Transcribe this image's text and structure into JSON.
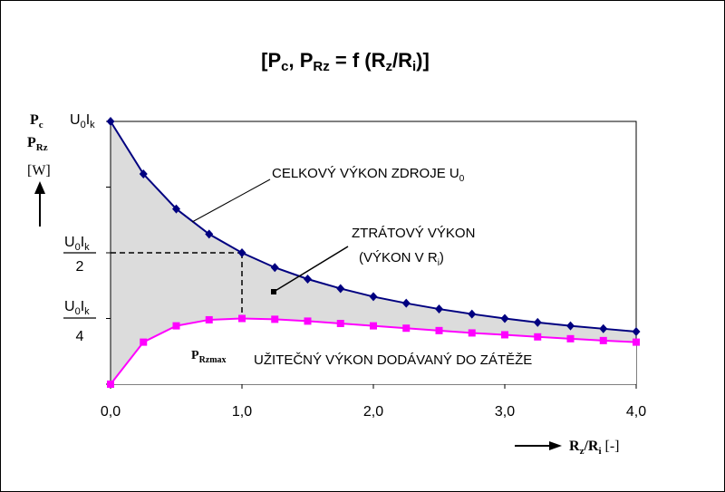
{
  "chart_data": {
    "type": "line",
    "title": {
      "base": "[P",
      "sub1": "c",
      "mid": ", P",
      "sub2": "Rz",
      "rest": " = f (R",
      "sub3": "z",
      "slash": "/R",
      "sub4": "i",
      "end": ")]"
    },
    "xlabel": {
      "main": "R",
      "sub1": "z",
      "slash": "/R",
      "sub2": "i",
      "unit": " [-]"
    },
    "ylabel": {
      "line1_main": "P",
      "line1_sub": "c",
      "line2_main": "P",
      "line2_sub": "Rz",
      "line3": "[W]"
    },
    "xlim": [
      0,
      4
    ],
    "ylim": [
      0,
      1
    ],
    "x_tick_labels": [
      "0,0",
      "1,0",
      "2,0",
      "3,0",
      "4,0"
    ],
    "x_tick_values": [
      0,
      1,
      2,
      3,
      4
    ],
    "y_tick_labels": {
      "top": {
        "u": "U",
        "u_sub": "0",
        "i": "I",
        "i_sub": "k"
      },
      "half": {
        "u": "U",
        "u_sub": "0",
        "i": "I",
        "i_sub": "k",
        "den": "2"
      },
      "quarter": {
        "u": "U",
        "u_sub": "0",
        "i": "I",
        "i_sub": "k",
        "den": "4"
      }
    },
    "x": [
      0,
      0.25,
      0.5,
      0.75,
      1.0,
      1.25,
      1.5,
      1.75,
      2.0,
      2.25,
      2.5,
      2.75,
      3.0,
      3.25,
      3.5,
      3.75,
      4.0
    ],
    "series": [
      {
        "name": "CELKOVÝ VÝKON ZDROJE U0",
        "color": "#000080",
        "marker": "diamond",
        "values": [
          1.0,
          0.8,
          0.667,
          0.571,
          0.5,
          0.444,
          0.4,
          0.364,
          0.333,
          0.308,
          0.286,
          0.267,
          0.25,
          0.235,
          0.222,
          0.211,
          0.2
        ]
      },
      {
        "name": "UŽITEČNÝ VÝKON DODÁVANÝ DO ZÁTĚŽE",
        "color": "#ff00ff",
        "marker": "square",
        "values": [
          0.0,
          0.16,
          0.222,
          0.245,
          0.25,
          0.247,
          0.24,
          0.231,
          0.222,
          0.213,
          0.204,
          0.195,
          0.188,
          0.18,
          0.173,
          0.166,
          0.16
        ]
      }
    ],
    "shading": {
      "fill": "#dcdcdc",
      "between": "x-axis and upper curve"
    },
    "background": "#ffffff",
    "annotations": {
      "celkovy": {
        "text": "CELKOVÝ VÝKON ZDROJE U",
        "sub": "0"
      },
      "ztratovy1": "ZTRÁTOVÝ VÝKON",
      "ztratovy2": {
        "text": "(VÝKON V R",
        "sub": "i",
        "end": ")"
      },
      "uzitecny": "UŽITEČNÝ VÝKON DODÁVANÝ DO ZÁTĚŽE",
      "prz": {
        "main": "P",
        "sub": "Rzmax"
      }
    }
  }
}
